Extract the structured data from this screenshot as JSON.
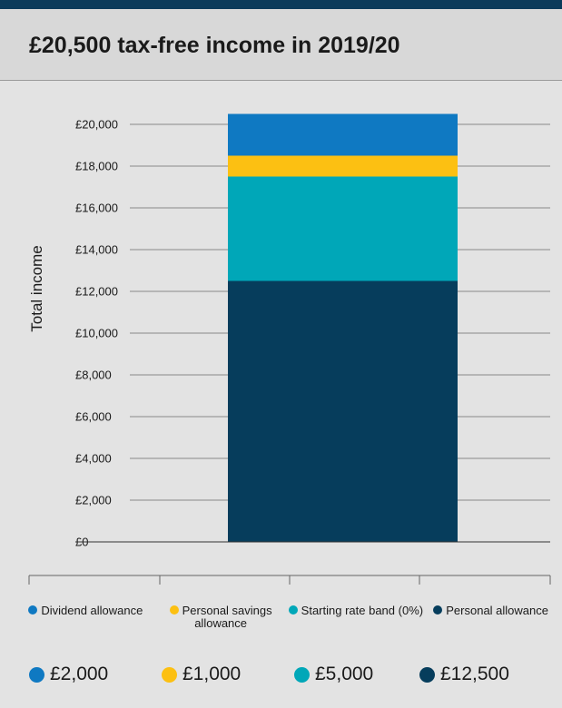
{
  "header": {
    "title": "£20,500 tax-free income in 2019/20"
  },
  "chart_data": {
    "type": "bar",
    "stacked": true,
    "title": "£20,500 tax-free income in 2019/20",
    "ylabel": "Total income",
    "ylim": [
      0,
      20000
    ],
    "y_ticks": [
      "£0",
      "£2,000",
      "£4,000",
      "£6,000",
      "£8,000",
      "£10,000",
      "£12,000",
      "£14,000",
      "£16,000",
      "£18,000",
      "£20,000"
    ],
    "grid": true,
    "legend_position": "bottom",
    "series": [
      {
        "name": "Personal allowance",
        "value": 12500,
        "value_label": "£12,500",
        "color": "#063d5c"
      },
      {
        "name": "Starting rate band (0%)",
        "value": 5000,
        "value_label": "£5,000",
        "color": "#00a7b8"
      },
      {
        "name": "Personal savings allowance",
        "value": 1000,
        "value_label": "£1,000",
        "color": "#fcc012"
      },
      {
        "name": "Dividend allowance",
        "value": 2000,
        "value_label": "£2,000",
        "color": "#0f79c2"
      }
    ]
  },
  "legend": [
    {
      "label": "Dividend allowance",
      "color": "#0f79c2"
    },
    {
      "label": "Personal savings allowance",
      "color": "#fcc012"
    },
    {
      "label": "Starting rate band (0%)",
      "color": "#00a7b8"
    },
    {
      "label": "Personal allowance",
      "color": "#063d5c"
    }
  ],
  "values": [
    {
      "label": "£2,000",
      "color": "#0f79c2"
    },
    {
      "label": "£1,000",
      "color": "#fcc012"
    },
    {
      "label": "£5,000",
      "color": "#00a7b8"
    },
    {
      "label": "£12,500",
      "color": "#063d5c"
    }
  ]
}
